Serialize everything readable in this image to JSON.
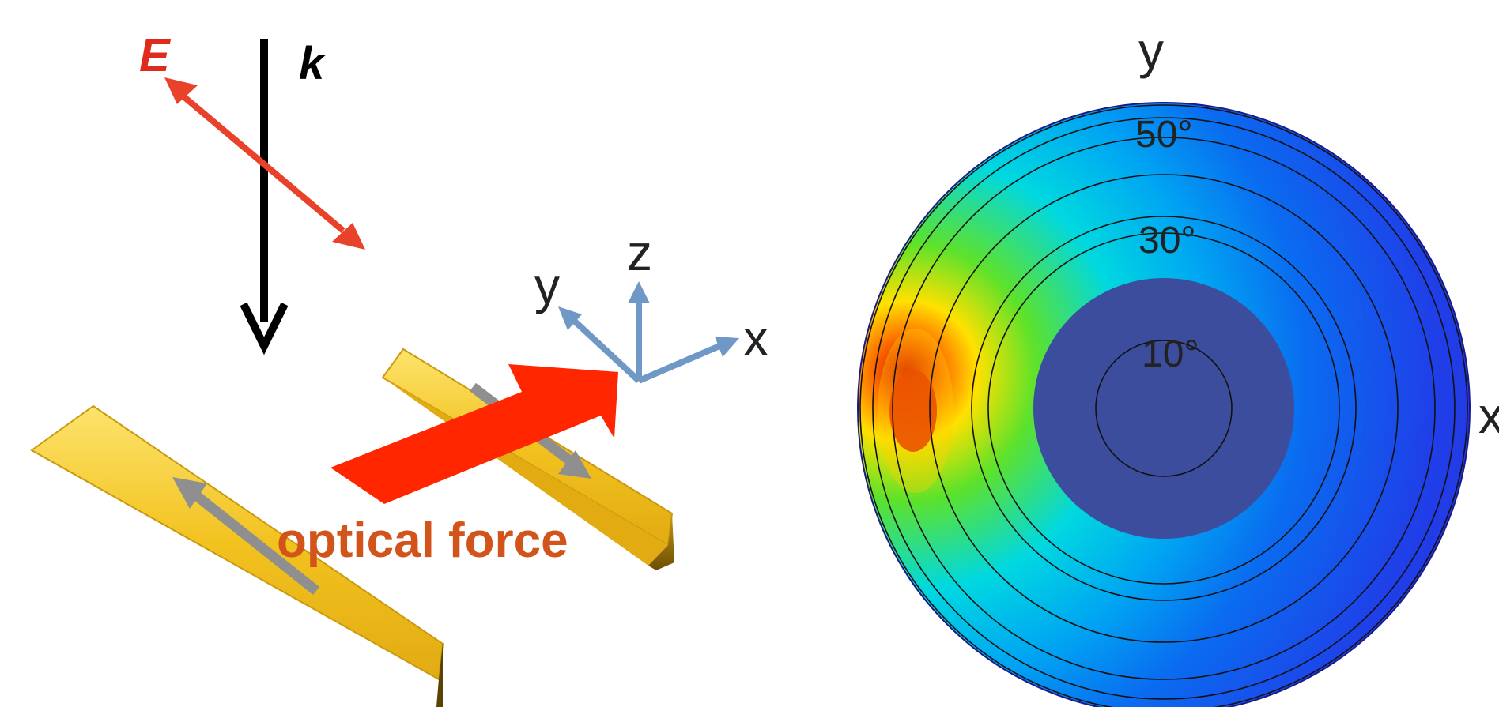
{
  "schematic": {
    "field_label": "E",
    "wavevector_label": "k",
    "force_label": "optical force",
    "axis_x": "x",
    "axis_y": "y",
    "axis_z": "z"
  },
  "polar_map": {
    "axis_y": "y",
    "axis_x": "x",
    "ring_labels": [
      "50°",
      "30°",
      "10°"
    ]
  },
  "colors": {
    "field_arrow": "#e8432a",
    "wavevector_arrow": "#000000",
    "force_arrow": "#ff2600",
    "force_text": "#d2541a",
    "axes": "#6f98c6",
    "gold": "#f2c21f",
    "current_arrow": "#8f8f8f",
    "center_disk": "#3d4d9e",
    "map_blue": "#2233e6"
  }
}
